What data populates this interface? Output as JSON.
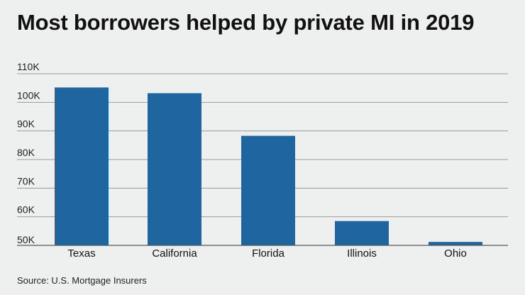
{
  "title": "Most borrowers helped by private MI in 2019",
  "source": "Source: U.S. Mortgage Insurers",
  "colors": {
    "background": "#eef0ef",
    "bar": "#1f65a0",
    "gridline": "#9a9a9a",
    "text": "#111111"
  },
  "chart_data": {
    "type": "bar",
    "categories": [
      "Texas",
      "California",
      "Florida",
      "Illinois",
      "Ohio"
    ],
    "values": [
      105200,
      103200,
      88300,
      58500,
      51200
    ],
    "ylim": [
      50000,
      110000
    ],
    "yticks": [
      50000,
      60000,
      70000,
      80000,
      90000,
      100000,
      110000
    ],
    "ytick_labels": [
      "50K",
      "60K",
      "70K",
      "80K",
      "90K",
      "100K",
      "110K"
    ],
    "grid": true,
    "legend": "none",
    "xlabel": "",
    "ylabel": ""
  }
}
